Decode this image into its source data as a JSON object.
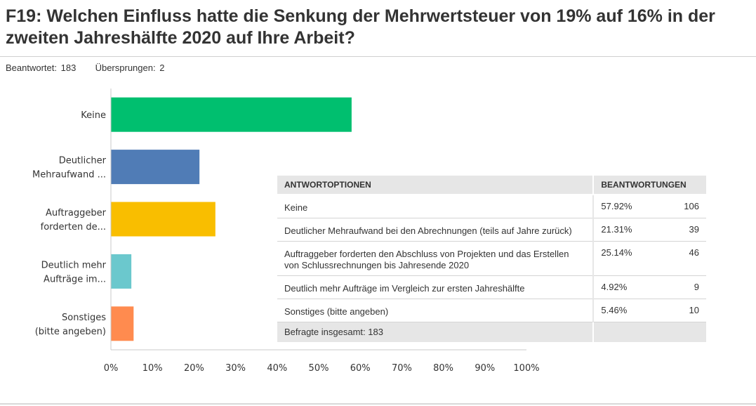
{
  "title": "F19: Welchen Einfluss hatte die Senkung der Mehrwertsteuer von 19% auf 16% in der zweiten Jahreshälfte 2020 auf Ihre Arbeit?",
  "stats": {
    "answered_label": "Beantwortet:",
    "answered_value": "183",
    "skipped_label": "Übersprungen:",
    "skipped_value": "2"
  },
  "chart_data": {
    "type": "bar",
    "orientation": "horizontal",
    "categories": [
      [
        "Keine"
      ],
      [
        "Deutlicher",
        "Mehraufwand ..."
      ],
      [
        "Auftraggeber",
        "forderten de..."
      ],
      [
        "Deutlich mehr",
        "Aufträge im..."
      ],
      [
        "Sonstiges",
        "(bitte angeben)"
      ]
    ],
    "values": [
      57.92,
      21.31,
      25.14,
      4.92,
      5.46
    ],
    "colors": [
      "#00bf6f",
      "#507cb6",
      "#f9be00",
      "#6bc8cd",
      "#ff8b4f"
    ],
    "xlim": [
      0,
      100
    ],
    "ticks": [
      "0%",
      "10%",
      "20%",
      "30%",
      "40%",
      "50%",
      "60%",
      "70%",
      "80%",
      "90%",
      "100%"
    ],
    "grid": false
  },
  "table": {
    "header_option": "ANTWORTOPTIONEN",
    "header_responses": "BEANTWORTUNGEN",
    "rows": [
      {
        "option": "Keine",
        "percent": "57.92%",
        "count": "106"
      },
      {
        "option": "Deutlicher Mehraufwand bei den Abrechnungen (teils auf Jahre zurück)",
        "percent": "21.31%",
        "count": "39"
      },
      {
        "option": "Auftraggeber forderten den Abschluss von Projekten und das Erstellen von Schlussrechnungen bis Jahresende 2020",
        "percent": "25.14%",
        "count": "46"
      },
      {
        "option": "Deutlich mehr Aufträge im Vergleich zur ersten Jahreshälfte",
        "percent": "4.92%",
        "count": "9"
      },
      {
        "option": "Sonstiges (bitte angeben)",
        "percent": "5.46%",
        "count": "10"
      }
    ],
    "total": "Befragte insgesamt: 183"
  }
}
